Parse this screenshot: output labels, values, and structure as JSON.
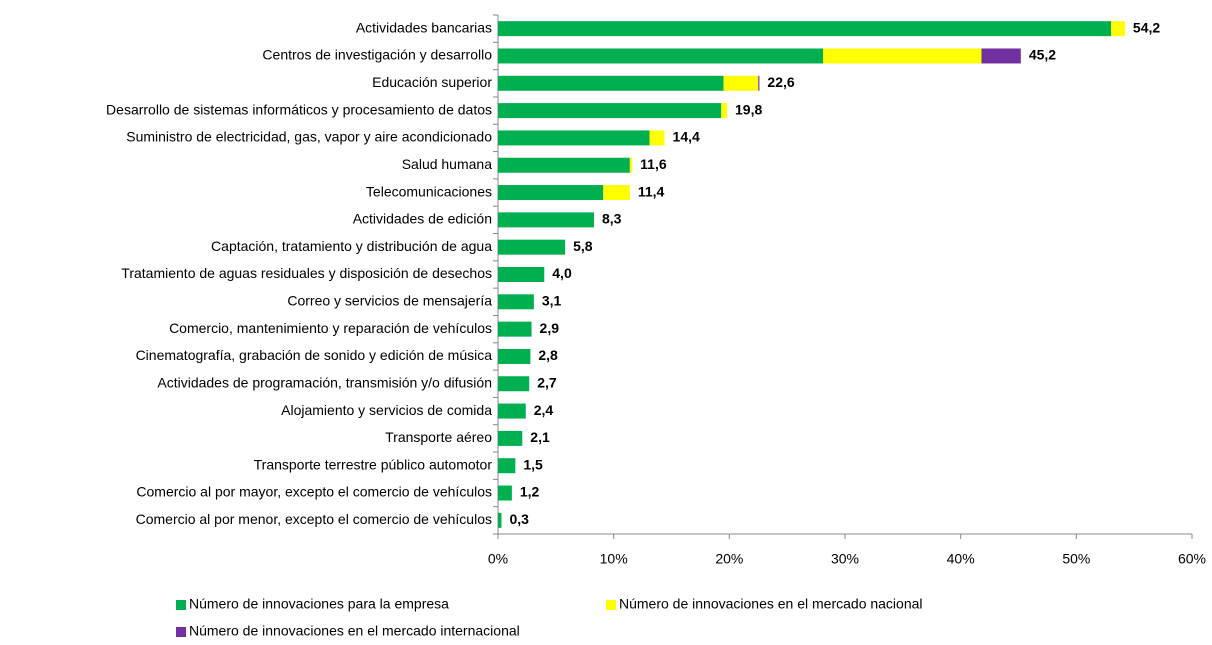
{
  "chart_data": {
    "type": "stacked_barh",
    "categories": [
      "Actividades bancarias",
      "Centros de investigación y desarrollo",
      "Educación superior",
      "Desarrollo de sistemas informáticos y procesamiento de datos",
      "Suministro de electricidad, gas, vapor y aire acondicionado",
      "Salud humana",
      "Telecomunicaciones",
      "Actividades de edición",
      "Captación, tratamiento y distribución de agua",
      "Tratamiento de aguas residuales y disposición de desechos",
      "Correo y servicios de mensajería",
      "Comercio, mantenimiento y reparación de vehículos",
      "Cinematografía, grabación de sonido y edición de música",
      "Actividades de programación, transmisión y/o difusión",
      "Alojamiento y servicios de comida",
      "Transporte aéreo",
      "Transporte terrestre público automotor",
      "Comercio al por mayor, excepto el comercio de vehículos",
      "Comercio al por menor, excepto el comercio de vehículos"
    ],
    "series": [
      {
        "name": "Número de innovaciones para la empresa",
        "color": "#00b050",
        "values": [
          53.0,
          28.1,
          19.5,
          19.3,
          13.1,
          11.4,
          9.1,
          8.3,
          5.8,
          4.0,
          3.1,
          2.9,
          2.8,
          2.7,
          2.4,
          2.1,
          1.5,
          1.2,
          0.3
        ]
      },
      {
        "name": "Número de innovaciones en el mercado nacional",
        "color": "#ffff00",
        "values": [
          1.2,
          13.7,
          3.0,
          0.5,
          1.3,
          0.2,
          2.3,
          0,
          0,
          0,
          0,
          0,
          0,
          0,
          0,
          0,
          0,
          0,
          0
        ]
      },
      {
        "name": "Número de innovaciones en el mercado internacional",
        "color": "#7030a0",
        "values": [
          0,
          3.4,
          0.1,
          0,
          0,
          0,
          0,
          0,
          0,
          0,
          0,
          0,
          0,
          0,
          0,
          0,
          0,
          0,
          0
        ]
      }
    ],
    "totals": [
      54.2,
      45.2,
      22.6,
      19.8,
      14.4,
      11.6,
      11.4,
      8.3,
      5.8,
      4.0,
      3.1,
      2.9,
      2.8,
      2.7,
      2.4,
      2.1,
      1.5,
      1.2,
      0.3
    ],
    "total_labels": [
      "54,2",
      "45,2",
      "22,6",
      "19,8",
      "14,4",
      "11,6",
      "11,4",
      "8,3",
      "5,8",
      "4,0",
      "3,1",
      "2,9",
      "2,8",
      "2,7",
      "2,4",
      "2,1",
      "1,5",
      "1,2",
      "0,3"
    ],
    "xlim": [
      0,
      60
    ],
    "xticks": [
      {
        "value": 0,
        "label": "0%"
      },
      {
        "value": 10,
        "label": "10%"
      },
      {
        "value": 20,
        "label": "20%"
      },
      {
        "value": 30,
        "label": "30%"
      },
      {
        "value": 40,
        "label": "40%"
      },
      {
        "value": 50,
        "label": "50%"
      },
      {
        "value": 60,
        "label": "60%"
      }
    ]
  }
}
